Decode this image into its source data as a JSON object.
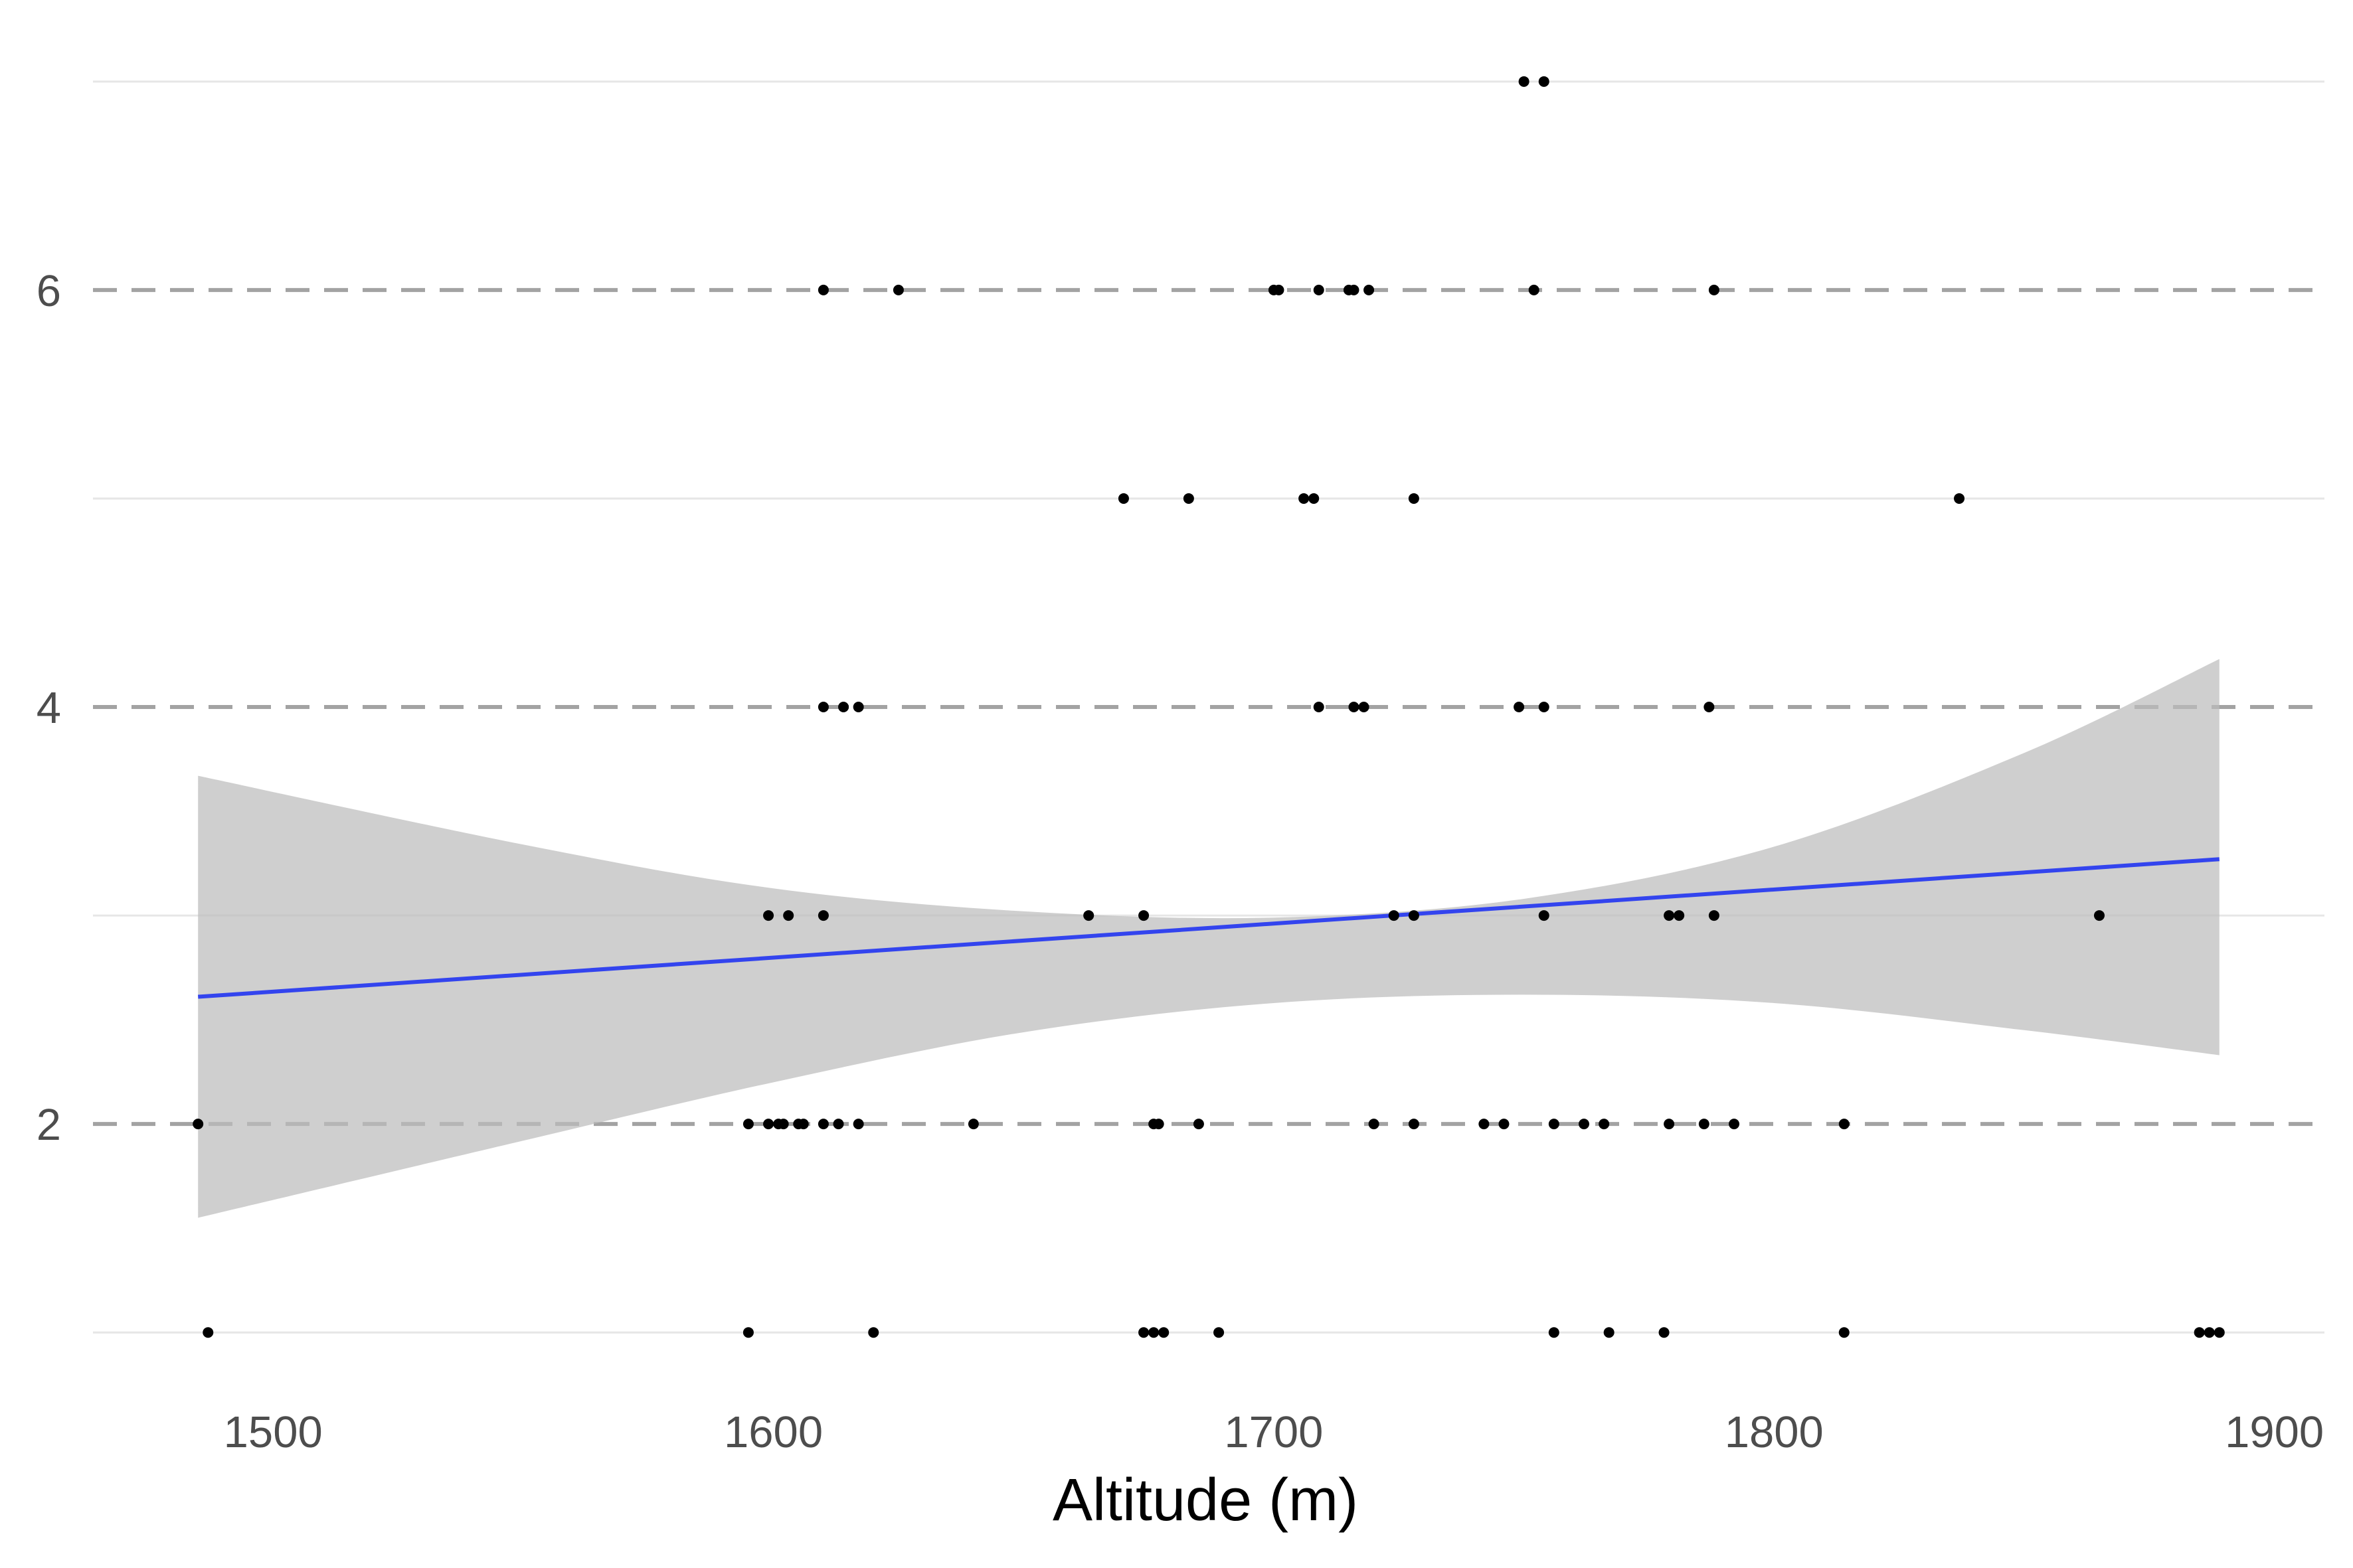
{
  "chart_data": {
    "type": "scatter",
    "title": "",
    "xlabel": "Altitude (m)",
    "ylabel": "",
    "xlim": [
      1464,
      1910
    ],
    "ylim": [
      0.8,
      7.2
    ],
    "x_ticks": [
      1500,
      1600,
      1700,
      1800,
      1900
    ],
    "y_ticks": [
      2,
      4,
      6
    ],
    "grid": "horizontal",
    "dashed_reference_lines": [
      2,
      4,
      6
    ],
    "points": [
      {
        "x": 1750,
        "y": 7
      },
      {
        "x": 1754,
        "y": 7
      },
      {
        "x": 1610,
        "y": 6
      },
      {
        "x": 1625,
        "y": 6
      },
      {
        "x": 1700,
        "y": 6
      },
      {
        "x": 1701,
        "y": 6
      },
      {
        "x": 1709,
        "y": 6
      },
      {
        "x": 1715,
        "y": 6
      },
      {
        "x": 1716,
        "y": 6
      },
      {
        "x": 1719,
        "y": 6
      },
      {
        "x": 1752,
        "y": 6
      },
      {
        "x": 1788,
        "y": 6
      },
      {
        "x": 1670,
        "y": 5
      },
      {
        "x": 1683,
        "y": 5
      },
      {
        "x": 1706,
        "y": 5
      },
      {
        "x": 1708,
        "y": 5
      },
      {
        "x": 1728,
        "y": 5
      },
      {
        "x": 1837,
        "y": 5
      },
      {
        "x": 1610,
        "y": 4
      },
      {
        "x": 1614,
        "y": 4
      },
      {
        "x": 1617,
        "y": 4
      },
      {
        "x": 1709,
        "y": 4
      },
      {
        "x": 1716,
        "y": 4
      },
      {
        "x": 1718,
        "y": 4
      },
      {
        "x": 1749,
        "y": 4
      },
      {
        "x": 1754,
        "y": 4
      },
      {
        "x": 1787,
        "y": 4
      },
      {
        "x": 1599,
        "y": 3
      },
      {
        "x": 1603,
        "y": 3
      },
      {
        "x": 1610,
        "y": 3
      },
      {
        "x": 1663,
        "y": 3
      },
      {
        "x": 1674,
        "y": 3
      },
      {
        "x": 1724,
        "y": 3
      },
      {
        "x": 1728,
        "y": 3
      },
      {
        "x": 1754,
        "y": 3
      },
      {
        "x": 1779,
        "y": 3
      },
      {
        "x": 1781,
        "y": 3
      },
      {
        "x": 1788,
        "y": 3
      },
      {
        "x": 1865,
        "y": 3
      },
      {
        "x": 1485,
        "y": 2
      },
      {
        "x": 1595,
        "y": 2
      },
      {
        "x": 1599,
        "y": 2
      },
      {
        "x": 1601,
        "y": 2
      },
      {
        "x": 1602,
        "y": 2
      },
      {
        "x": 1605,
        "y": 2
      },
      {
        "x": 1606,
        "y": 2
      },
      {
        "x": 1610,
        "y": 2
      },
      {
        "x": 1613,
        "y": 2
      },
      {
        "x": 1617,
        "y": 2
      },
      {
        "x": 1640,
        "y": 2
      },
      {
        "x": 1676,
        "y": 2
      },
      {
        "x": 1677,
        "y": 2
      },
      {
        "x": 1685,
        "y": 2
      },
      {
        "x": 1720,
        "y": 2
      },
      {
        "x": 1728,
        "y": 2
      },
      {
        "x": 1742,
        "y": 2
      },
      {
        "x": 1746,
        "y": 2
      },
      {
        "x": 1756,
        "y": 2
      },
      {
        "x": 1762,
        "y": 2
      },
      {
        "x": 1766,
        "y": 2
      },
      {
        "x": 1779,
        "y": 2
      },
      {
        "x": 1786,
        "y": 2
      },
      {
        "x": 1792,
        "y": 2
      },
      {
        "x": 1814,
        "y": 2
      },
      {
        "x": 1487,
        "y": 1
      },
      {
        "x": 1595,
        "y": 1
      },
      {
        "x": 1620,
        "y": 1
      },
      {
        "x": 1674,
        "y": 1
      },
      {
        "x": 1676,
        "y": 1
      },
      {
        "x": 1678,
        "y": 1
      },
      {
        "x": 1689,
        "y": 1
      },
      {
        "x": 1756,
        "y": 1
      },
      {
        "x": 1767,
        "y": 1
      },
      {
        "x": 1778,
        "y": 1
      },
      {
        "x": 1814,
        "y": 1
      },
      {
        "x": 1885,
        "y": 1
      },
      {
        "x": 1887,
        "y": 1
      },
      {
        "x": 1889,
        "y": 1
      }
    ],
    "trend_line": {
      "x": [
        1485,
        1889
      ],
      "y": [
        2.61,
        3.27
      ]
    },
    "confidence_band": {
      "x": [
        1485,
        1550,
        1600,
        1650,
        1700,
        1750,
        1800,
        1850,
        1889
      ],
      "lower": [
        1.55,
        1.92,
        2.2,
        2.44,
        2.58,
        2.62,
        2.58,
        2.45,
        2.33
      ],
      "upper": [
        3.67,
        3.34,
        3.13,
        3.02,
        2.99,
        3.08,
        3.33,
        3.78,
        4.23
      ]
    },
    "colors": {
      "trend_line": "#3344ee",
      "band": "#bdbdbd",
      "points": "#000000",
      "grid": "#e6e6e6",
      "dashed_lines": "#a3a3a3"
    }
  }
}
